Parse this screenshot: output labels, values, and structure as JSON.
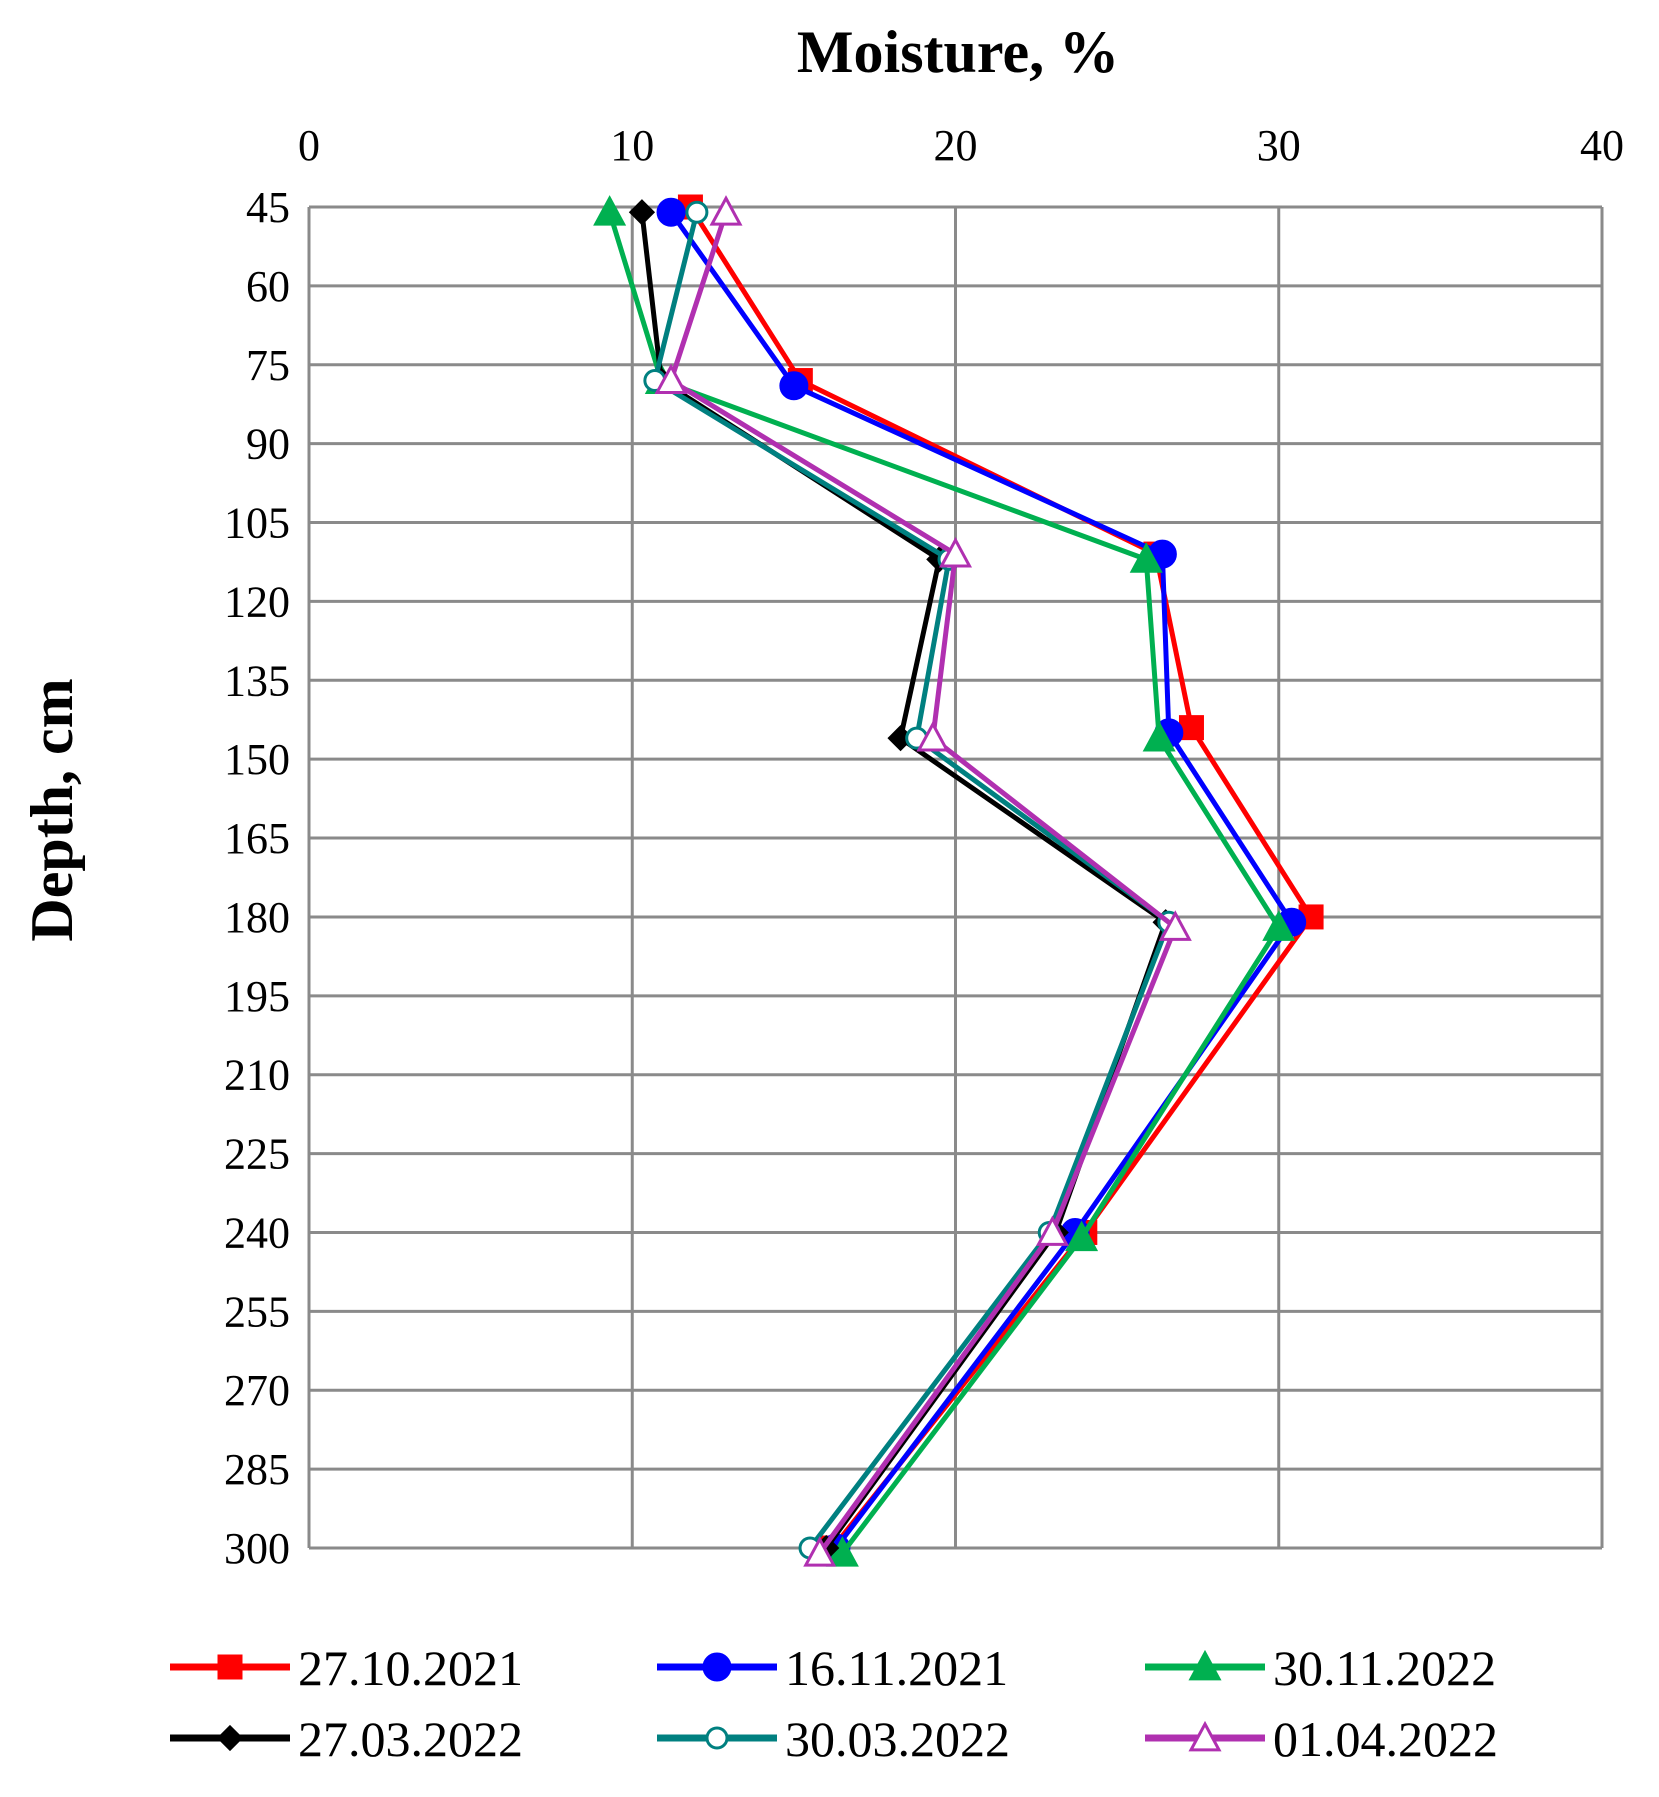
{
  "chart_data": {
    "type": "line",
    "orientation": "vertical-profile",
    "xlabel": "Moisture, %",
    "ylabel": "Depth, cm",
    "xlim": [
      0,
      40
    ],
    "ylim": [
      45,
      300
    ],
    "y_inverted": true,
    "x_axis_position": "top",
    "x_ticks": [
      "0",
      "10",
      "20",
      "30",
      "40"
    ],
    "y_ticks": [
      "45",
      "60",
      "75",
      "90",
      "105",
      "120",
      "135",
      "150",
      "165",
      "180",
      "195",
      "210",
      "225",
      "240",
      "255",
      "270",
      "285",
      "300"
    ],
    "grid": true,
    "legend_position": "bottom",
    "series": [
      {
        "name": "27.10.2021",
        "color": "#ff0000",
        "marker": "square",
        "filled": true,
        "points": [
          [
            11.8,
            45
          ],
          [
            15.2,
            78
          ],
          [
            26.2,
            111
          ],
          [
            27.3,
            144
          ],
          [
            31.0,
            180
          ],
          [
            24.0,
            240
          ],
          [
            16.2,
            300
          ]
        ]
      },
      {
        "name": "16.11.2021",
        "color": "#0000ff",
        "marker": "circle",
        "filled": true,
        "points": [
          [
            11.2,
            46
          ],
          [
            15.0,
            79
          ],
          [
            26.4,
            111
          ],
          [
            26.6,
            145
          ],
          [
            30.4,
            181
          ],
          [
            23.7,
            240
          ],
          [
            16.3,
            300
          ]
        ]
      },
      {
        "name": "30.11.2022",
        "color": "#00b050",
        "marker": "triangle",
        "filled": true,
        "points": [
          [
            9.3,
            46
          ],
          [
            10.9,
            78
          ],
          [
            25.9,
            112
          ],
          [
            26.3,
            146
          ],
          [
            30.0,
            182
          ],
          [
            23.9,
            241
          ],
          [
            16.5,
            301
          ]
        ]
      },
      {
        "name": "27.03.2022",
        "color": "#000000",
        "marker": "diamond",
        "filled": true,
        "points": [
          [
            10.3,
            46
          ],
          [
            10.9,
            78
          ],
          [
            19.5,
            112
          ],
          [
            18.3,
            146
          ],
          [
            26.5,
            181
          ],
          [
            23.1,
            240
          ],
          [
            16.0,
            300
          ]
        ]
      },
      {
        "name": "30.03.2022",
        "color": "#008080",
        "marker": "circle",
        "filled": false,
        "points": [
          [
            12.0,
            46
          ],
          [
            10.7,
            78
          ],
          [
            19.8,
            112
          ],
          [
            18.8,
            146
          ],
          [
            26.6,
            181
          ],
          [
            22.9,
            240
          ],
          [
            15.5,
            300
          ]
        ]
      },
      {
        "name": "01.04.2022",
        "color": "#b030b0",
        "marker": "triangle",
        "filled": false,
        "points": [
          [
            12.9,
            46
          ],
          [
            11.2,
            78
          ],
          [
            20.0,
            111
          ],
          [
            19.3,
            146
          ],
          [
            26.8,
            182
          ],
          [
            23.0,
            240
          ],
          [
            15.8,
            301
          ]
        ]
      }
    ]
  }
}
